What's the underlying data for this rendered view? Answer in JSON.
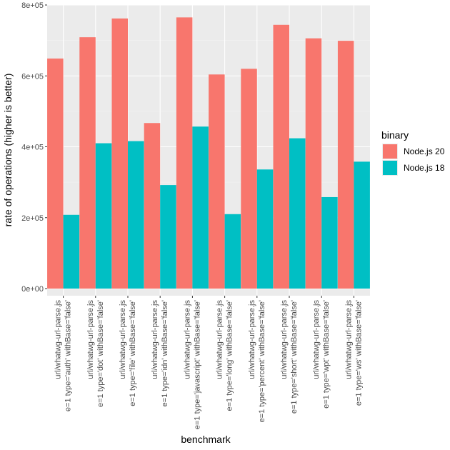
{
  "chart_data": {
    "type": "bar",
    "xlabel": "benchmark",
    "ylabel": "rate of operations (higher is better)",
    "ylim": [
      0,
      800000
    ],
    "y_ticks": [
      0,
      200000,
      400000,
      600000,
      800000
    ],
    "y_tick_labels": [
      "0e+00",
      "2e+05",
      "4e+05",
      "6e+05",
      "8e+05"
    ],
    "grid": true,
    "legend": {
      "title": "binary",
      "position": "right"
    },
    "categories": [
      [
        "url/whatwg-url-parse.js",
        "e=1 type='auth' withBase='false'"
      ],
      [
        "url/whatwg-url-parse.js",
        "e=1 type='dot' withBase='false'"
      ],
      [
        "url/whatwg-url-parse.js",
        "e=1 type='file' withBase='false'"
      ],
      [
        "url/whatwg-url-parse.js",
        "e=1 type='idn' withBase='false'"
      ],
      [
        "url/whatwg-url-parse.js",
        "e=1 type='javascript' withBase='false'"
      ],
      [
        "url/whatwg-url-parse.js",
        "e=1 type='long' withBase='false'"
      ],
      [
        "url/whatwg-url-parse.js",
        "e=1 type='percent' withBase='false'"
      ],
      [
        "url/whatwg-url-parse.js",
        "e=1 type='short' withBase='false'"
      ],
      [
        "url/whatwg-url-parse.js",
        "e=1 type='wpt' withBase='false'"
      ],
      [
        "url/whatwg-url-parse.js",
        "e=1 type='ws' withBase='false'"
      ]
    ],
    "series": [
      {
        "name": "Node.js 20",
        "color": "#F8766D",
        "values": [
          649000,
          709000,
          762000,
          467000,
          765000,
          604000,
          620000,
          744000,
          706000,
          699000
        ]
      },
      {
        "name": "Node.js 18",
        "color": "#00BFC4",
        "values": [
          208000,
          410000,
          416000,
          292000,
          457000,
          210000,
          336000,
          424000,
          258000,
          358000
        ]
      }
    ]
  }
}
